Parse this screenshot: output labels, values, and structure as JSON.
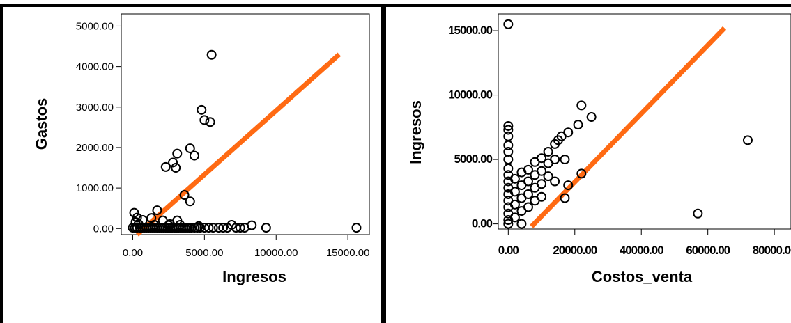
{
  "colors": {
    "frame": "#000000",
    "point": "#000000",
    "line": "#ff6a13",
    "background": "#ffffff"
  },
  "chart_data": [
    {
      "type": "scatter",
      "title": "",
      "xlabel": "Ingresos",
      "ylabel": "Gastos",
      "xlim": [
        -800,
        16500
      ],
      "ylim": [
        -150,
        5300
      ],
      "xticks": [
        0,
        5000,
        10000,
        15000
      ],
      "xtick_labels": [
        "0.00",
        "5000.00",
        "10000.00",
        "15000.00"
      ],
      "yticks": [
        0,
        1000,
        2000,
        3000,
        4000,
        5000
      ],
      "ytick_labels": [
        "0.00",
        "1000.00",
        "2000.00",
        "3000.00",
        "4000.00",
        "5000.00"
      ],
      "marker": "open-circle",
      "fit_line": {
        "from": [
          300,
          -150
        ],
        "to": [
          14400,
          4300
        ]
      },
      "points": [
        [
          5500,
          4290
        ],
        [
          4800,
          2930
        ],
        [
          5000,
          2680
        ],
        [
          5400,
          2630
        ],
        [
          4000,
          1980
        ],
        [
          3100,
          1850
        ],
        [
          4300,
          1800
        ],
        [
          2800,
          1630
        ],
        [
          2300,
          1520
        ],
        [
          3000,
          1500
        ],
        [
          3600,
          830
        ],
        [
          4000,
          670
        ],
        [
          100,
          390
        ],
        [
          1700,
          450
        ],
        [
          300,
          270
        ],
        [
          200,
          160
        ],
        [
          700,
          210
        ],
        [
          1300,
          260
        ],
        [
          2100,
          200
        ],
        [
          3100,
          200
        ],
        [
          2600,
          110
        ],
        [
          400,
          110
        ],
        [
          0,
          20
        ],
        [
          150,
          20
        ],
        [
          300,
          20
        ],
        [
          500,
          20
        ],
        [
          650,
          20
        ],
        [
          800,
          20
        ],
        [
          950,
          20
        ],
        [
          1100,
          20
        ],
        [
          1250,
          20
        ],
        [
          1400,
          20
        ],
        [
          1550,
          20
        ],
        [
          1700,
          20
        ],
        [
          1850,
          20
        ],
        [
          2000,
          20
        ],
        [
          2150,
          20
        ],
        [
          2300,
          20
        ],
        [
          2450,
          20
        ],
        [
          2600,
          20
        ],
        [
          2750,
          20
        ],
        [
          2900,
          20
        ],
        [
          3050,
          20
        ],
        [
          3200,
          20
        ],
        [
          3350,
          20
        ],
        [
          3500,
          20
        ],
        [
          3650,
          20
        ],
        [
          3800,
          20
        ],
        [
          3950,
          20
        ],
        [
          4100,
          20
        ],
        [
          4300,
          20
        ],
        [
          4500,
          20
        ],
        [
          4700,
          20
        ],
        [
          5000,
          20
        ],
        [
          5300,
          20
        ],
        [
          5600,
          20
        ],
        [
          6000,
          20
        ],
        [
          6300,
          20
        ],
        [
          6600,
          20
        ],
        [
          6900,
          90
        ],
        [
          7200,
          20
        ],
        [
          7500,
          20
        ],
        [
          7800,
          20
        ],
        [
          8300,
          80
        ],
        [
          9300,
          20
        ],
        [
          15600,
          20
        ],
        [
          4600,
          60
        ],
        [
          3300,
          90
        ],
        [
          2500,
          80
        ],
        [
          1500,
          90
        ]
      ]
    },
    {
      "type": "scatter",
      "title": "",
      "xlabel": "Costos_venta",
      "ylabel": "Ingresos",
      "xlim": [
        -3000,
        85000
      ],
      "ylim": [
        -400,
        16300
      ],
      "xticks": [
        0,
        20000,
        40000,
        60000,
        80000
      ],
      "xtick_labels": [
        "0.00",
        "20000.00",
        "40000.00",
        "60000.00",
        "80000.00"
      ],
      "yticks": [
        0,
        5000,
        10000,
        15000
      ],
      "ytick_labels": [
        "0.00",
        "5000.00",
        "10000.00",
        "15000.00"
      ],
      "marker": "open-circle",
      "fit_line": {
        "from": [
          7000,
          -200
        ],
        "to": [
          65000,
          15200
        ]
      },
      "points": [
        [
          0,
          15500
        ],
        [
          0,
          7600
        ],
        [
          0,
          7300
        ],
        [
          0,
          6800
        ],
        [
          0,
          6100
        ],
        [
          0,
          5600
        ],
        [
          0,
          5000
        ],
        [
          0,
          4300
        ],
        [
          0,
          3800
        ],
        [
          0,
          3300
        ],
        [
          0,
          2800
        ],
        [
          0,
          2300
        ],
        [
          0,
          1800
        ],
        [
          0,
          1300
        ],
        [
          0,
          800
        ],
        [
          0,
          300
        ],
        [
          0,
          0
        ],
        [
          2000,
          3500
        ],
        [
          2000,
          2500
        ],
        [
          2000,
          1500
        ],
        [
          2000,
          500
        ],
        [
          4000,
          4000
        ],
        [
          4000,
          3000
        ],
        [
          4000,
          2000
        ],
        [
          4000,
          1000
        ],
        [
          4000,
          0
        ],
        [
          6000,
          4200
        ],
        [
          6000,
          3300
        ],
        [
          6000,
          2300
        ],
        [
          6000,
          1300
        ],
        [
          8000,
          4800
        ],
        [
          8000,
          3800
        ],
        [
          8000,
          2800
        ],
        [
          8000,
          1800
        ],
        [
          10000,
          5100
        ],
        [
          10000,
          4100
        ],
        [
          10000,
          3100
        ],
        [
          10000,
          2100
        ],
        [
          12000,
          5600
        ],
        [
          12000,
          4700
        ],
        [
          12000,
          3700
        ],
        [
          14000,
          6200
        ],
        [
          14000,
          5000
        ],
        [
          14000,
          3300
        ],
        [
          16000,
          6800
        ],
        [
          17000,
          5000
        ],
        [
          17000,
          2000
        ],
        [
          18000,
          3000
        ],
        [
          21000,
          7700
        ],
        [
          22000,
          9200
        ],
        [
          25000,
          8300
        ],
        [
          22000,
          3900
        ],
        [
          18000,
          7100
        ],
        [
          15000,
          6500
        ],
        [
          57000,
          800
        ],
        [
          72000,
          6500
        ]
      ]
    }
  ]
}
